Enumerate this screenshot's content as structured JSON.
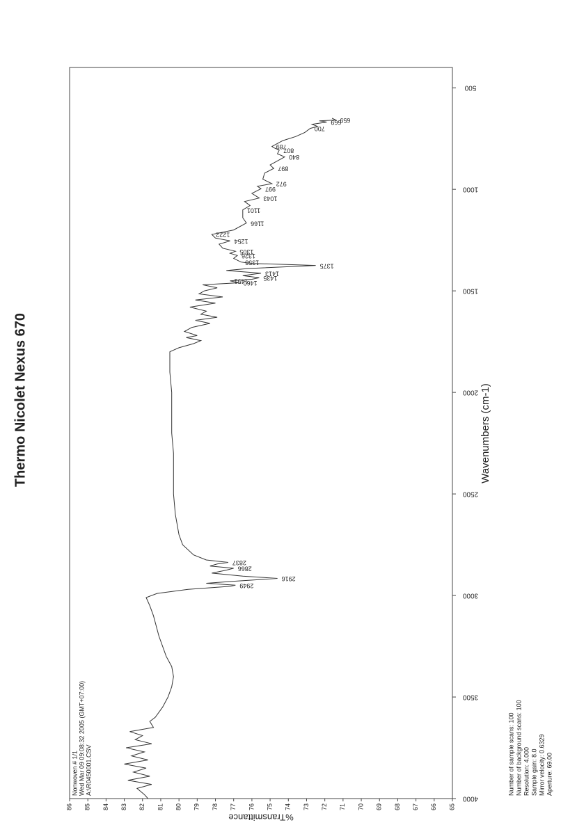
{
  "chart_data": {
    "type": "line",
    "title": "Thermo Nicolet Nexus 670",
    "x_label": "Wavenumbers (cm-1)",
    "y_label": "%Transmittance",
    "annotations": [
      "Nonwoven # 1/1",
      "Wed Mar 09 09:08:32 2005 (GMT+07:00)",
      "A:\\R0450001.CSV"
    ],
    "info": [
      "Number of sample scans: 100",
      "Number of background scans: 100",
      "Resolution: 4.000",
      "Sample gain: 8.0",
      "Mirror velocity: 0.6329",
      "Aperture: 69.00"
    ],
    "color": "#333333",
    "xlim": [
      4000,
      400
    ],
    "ylim": [
      65,
      86
    ],
    "xticks": [
      4000,
      3500,
      3000,
      2500,
      2000,
      1500,
      1000,
      500
    ],
    "yticks": [
      65,
      66,
      67,
      68,
      69,
      70,
      71,
      72,
      73,
      74,
      75,
      76,
      77,
      78,
      79,
      80,
      81,
      82,
      83,
      84,
      85,
      86
    ],
    "x": [
      4000,
      3980,
      3950,
      3930,
      3910,
      3890,
      3870,
      3850,
      3830,
      3810,
      3790,
      3770,
      3750,
      3730,
      3710,
      3690,
      3670,
      3650,
      3620,
      3600,
      3550,
      3500,
      3450,
      3400,
      3350,
      3300,
      3200,
      3100,
      3050,
      3010,
      2990,
      2970,
      2955,
      2949,
      2940,
      2930,
      2916,
      2905,
      2890,
      2875,
      2866,
      2855,
      2845,
      2837,
      2825,
      2800,
      2750,
      2700,
      2600,
      2500,
      2300,
      2200,
      2000,
      1900,
      1800,
      1780,
      1760,
      1745,
      1730,
      1720,
      1700,
      1680,
      1660,
      1645,
      1630,
      1615,
      1600,
      1580,
      1560,
      1545,
      1530,
      1515,
      1500,
      1485,
      1470,
      1460,
      1451,
      1443,
      1435,
      1425,
      1413,
      1400,
      1390,
      1375,
      1365,
      1358,
      1340,
      1326,
      1315,
      1305,
      1290,
      1270,
      1254,
      1240,
      1222,
      1200,
      1166,
      1140,
      1101,
      1080,
      1060,
      1043,
      1020,
      997,
      985,
      972,
      950,
      920,
      897,
      880,
      860,
      840,
      825,
      807,
      795,
      789,
      760,
      740,
      720,
      700,
      690,
      680,
      669,
      663,
      659,
      650
    ],
    "values": [
      81.7,
      81.9,
      82.3,
      81.5,
      82.8,
      81.6,
      82.5,
      81.8,
      83.0,
      81.7,
      82.6,
      81.9,
      82.9,
      81.5,
      82.4,
      82.0,
      82.7,
      81.4,
      81.6,
      81.3,
      80.9,
      80.6,
      80.4,
      80.3,
      80.4,
      80.7,
      81.1,
      81.4,
      81.6,
      81.8,
      81.2,
      79.5,
      77.2,
      76.9,
      78.5,
      77.0,
      74.6,
      76.5,
      78.2,
      77.4,
      77.0,
      78.3,
      77.9,
      77.3,
      78.5,
      79.2,
      79.8,
      80.0,
      80.2,
      80.3,
      80.3,
      80.4,
      80.4,
      80.5,
      80.5,
      80.0,
      79.2,
      78.8,
      79.6,
      79.0,
      79.7,
      79.3,
      78.3,
      79.1,
      77.9,
      78.8,
      78.5,
      79.4,
      78.0,
      79.1,
      77.6,
      78.9,
      78.6,
      77.9,
      78.7,
      76.7,
      77.2,
      76.0,
      75.6,
      76.5,
      75.5,
      77.4,
      76.2,
      72.5,
      76.0,
      76.6,
      77.0,
      76.8,
      77.2,
      76.9,
      77.6,
      77.8,
      77.2,
      78.0,
      78.2,
      77.0,
      76.3,
      76.5,
      76.5,
      76.1,
      76.4,
      75.6,
      76.0,
      75.5,
      75.7,
      74.9,
      75.4,
      75.3,
      74.8,
      75.0,
      74.6,
      74.2,
      74.6,
      74.5,
      74.8,
      74.9,
      74.3,
      73.6,
      73.1,
      72.8,
      72.4,
      72.7,
      71.9,
      72.3,
      71.4,
      71.6
    ],
    "peaks": [
      2949,
      2916,
      2866,
      2837,
      1460,
      1451,
      1435,
      1413,
      1375,
      1358,
      1326,
      1305,
      1254,
      1222,
      1166,
      1101,
      1043,
      997,
      972,
      897,
      840,
      807,
      789,
      700,
      669,
      659
    ]
  }
}
